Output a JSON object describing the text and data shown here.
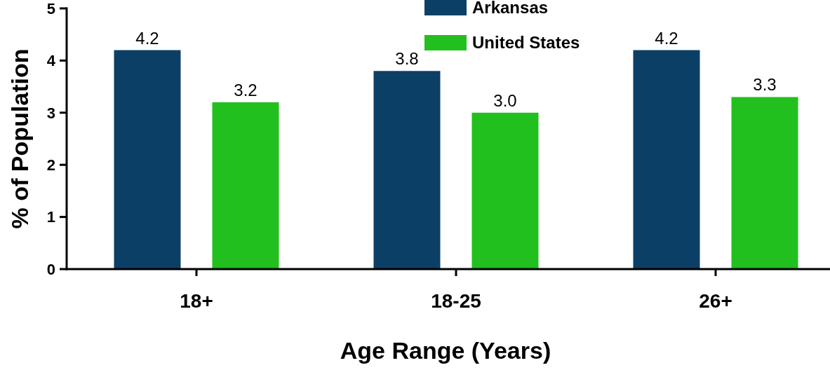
{
  "chart_data": {
    "type": "bar",
    "xlabel": "Age Range (Years)",
    "ylabel": "% of Population",
    "categories": [
      "18+",
      "18-25",
      "26+"
    ],
    "series": [
      {
        "name": "Arkansas",
        "color": "#0c3f66",
        "values": [
          4.2,
          3.8,
          4.2
        ]
      },
      {
        "name": "United States",
        "color": "#22c01e",
        "values": [
          3.2,
          3.0,
          3.3
        ]
      }
    ],
    "value_labels": [
      [
        "4.2",
        "3.8",
        "4.2"
      ],
      [
        "3.2",
        "3.0",
        "3.3"
      ]
    ],
    "ylim": [
      0,
      5
    ],
    "yticks": [
      0,
      1,
      2,
      3,
      4,
      5
    ],
    "grid": false,
    "legend": "top"
  }
}
